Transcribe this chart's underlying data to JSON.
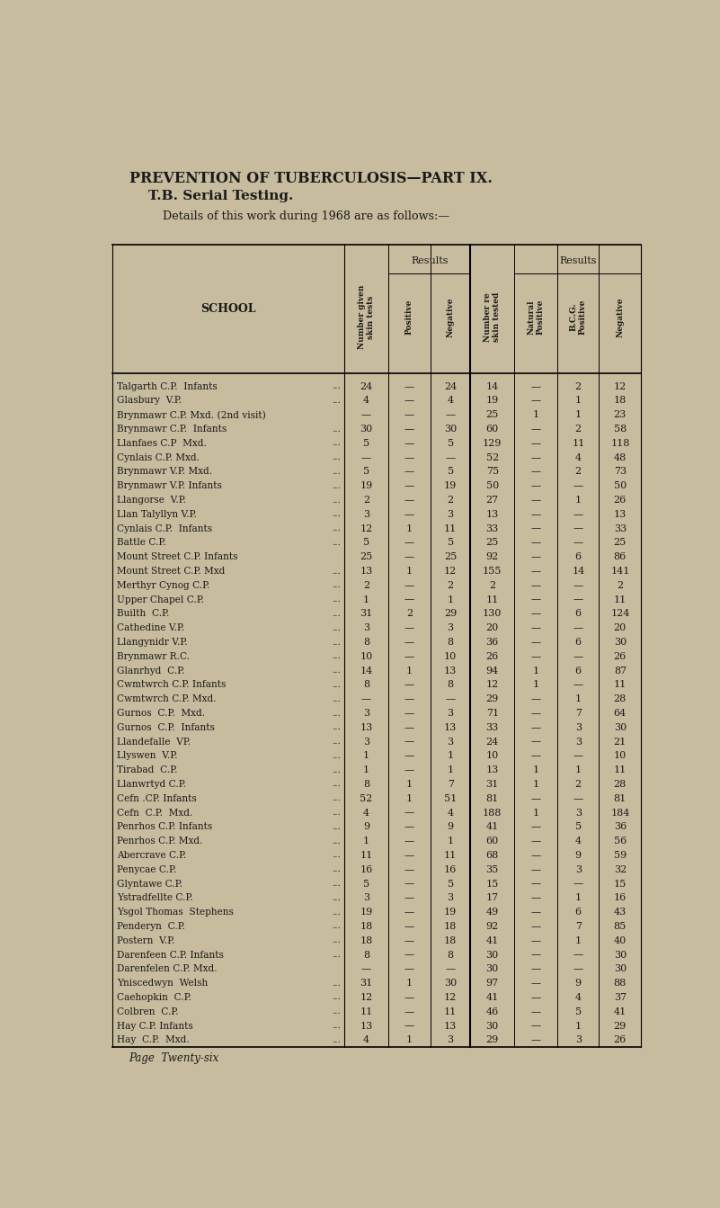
{
  "title1": "PREVENTION OF TUBERCULOSIS—PART IX.",
  "title2": "T.B. Serial Testing.",
  "subtitle": "Details of this work during 1968 are as follows:—",
  "bg_color": "#c8bc9e",
  "text_color": "#1a1a1a",
  "page_footer": "Page  Twenty-six",
  "rows": [
    [
      "Talgarth C.P.  Infants",
      true,
      "24",
      "—",
      "24",
      "14",
      "—",
      "2",
      "12"
    ],
    [
      "Glasbury  V.P.",
      true,
      "4",
      "—",
      "4",
      "19",
      "—",
      "1",
      "18"
    ],
    [
      "Brynmawr C.P. Mxd. (2nd visit)",
      false,
      "—",
      "—",
      "—",
      "25",
      "1",
      "1",
      "23"
    ],
    [
      "Brynmawr C.P.  Infants",
      true,
      "30",
      "—",
      "30",
      "60",
      "—",
      "2",
      "58"
    ],
    [
      "Llanfaes C.P  Mxd.",
      true,
      "5",
      "—",
      "5",
      "129",
      "—",
      "11",
      "118"
    ],
    [
      "Cynlais C.P. Mxd.",
      true,
      "—",
      "—",
      "—",
      "52",
      "—",
      "4",
      "48"
    ],
    [
      "Brynmawr V.P. Mxd.",
      true,
      "5",
      "—",
      "5",
      "75",
      "—",
      "2",
      "73"
    ],
    [
      "Brynmawr V.P. Infants",
      true,
      "19",
      "—",
      "19",
      "50",
      "—",
      "—",
      "50"
    ],
    [
      "Llangorse  V.P.",
      true,
      "2",
      "—",
      "2",
      "27",
      "—",
      "1",
      "26"
    ],
    [
      "Llan Talyllyn V.P.",
      true,
      "3",
      "—",
      "3",
      "13",
      "—",
      "—",
      "13"
    ],
    [
      "Cynlais C.P.  Infants",
      true,
      "12",
      "1",
      "11",
      "33",
      "—",
      "—",
      "33"
    ],
    [
      "Battle C.P.",
      true,
      "5",
      "—",
      "5",
      "25",
      "—",
      "—",
      "25"
    ],
    [
      "Mount Street C.P. Infants",
      false,
      "25",
      "—",
      "25",
      "92",
      "—",
      "6",
      "86"
    ],
    [
      "Mount Street C.P. Mxd",
      true,
      "13",
      "1",
      "12",
      "155",
      "—",
      "14",
      "141"
    ],
    [
      "Merthyr Cynog C.P.",
      true,
      "2",
      "—",
      "2",
      "2",
      "—",
      "—",
      "2"
    ],
    [
      "Upper Chapel C.P.",
      true,
      "1",
      "—",
      "1",
      "11",
      "—",
      "—",
      "11"
    ],
    [
      "Builth  C.P.",
      true,
      "31",
      "2",
      "29",
      "130",
      "—",
      "6",
      "124"
    ],
    [
      "Cathedine V.P.",
      true,
      "3",
      "—",
      "3",
      "20",
      "—",
      "—",
      "20"
    ],
    [
      "Llangynidr V.P.",
      true,
      "8",
      "—",
      "8",
      "36",
      "—",
      "6",
      "30"
    ],
    [
      "Brynmawr R.C.",
      true,
      "10",
      "—",
      "10",
      "26",
      "—",
      "—",
      "26"
    ],
    [
      "Glanrhyd  C.P.",
      true,
      "14",
      "1",
      "13",
      "94",
      "1",
      "6",
      "87"
    ],
    [
      "Cwmtwrch C.P. Infants",
      true,
      "8",
      "—",
      "8",
      "12",
      "1",
      "—",
      "11"
    ],
    [
      "Cwmtwrch C.P. Mxd.",
      true,
      "—",
      "—",
      "—",
      "29",
      "—",
      "1",
      "28"
    ],
    [
      "Gurnos  C.P.  Mxd.",
      true,
      "3",
      "—",
      "3",
      "71",
      "—",
      "7",
      "64"
    ],
    [
      "Gurnos  C.P.  Infants",
      true,
      "13",
      "—",
      "13",
      "33",
      "—",
      "3",
      "30"
    ],
    [
      "Llandefalle  VP.",
      true,
      "3",
      "—",
      "3",
      "24",
      "—",
      "3",
      "21"
    ],
    [
      "Llyswen  V.P.",
      true,
      "1",
      "—",
      "1",
      "10",
      "—",
      "—",
      "10"
    ],
    [
      "Tirabad  C.P.",
      true,
      "1",
      "—",
      "1",
      "13",
      "1",
      "1",
      "11"
    ],
    [
      "Llanwrtyd C.P.",
      true,
      "8",
      "1",
      "7",
      "31",
      "1",
      "2",
      "28"
    ],
    [
      "Cefn .CP. Infants",
      true,
      "52",
      "1",
      "51",
      "81",
      "—",
      "—",
      "81"
    ],
    [
      "Cefn  C.P.  Mxd.",
      true,
      "4",
      "—",
      "4",
      "188",
      "1",
      "3",
      "184"
    ],
    [
      "Penrhos C.P. Infants",
      true,
      "9",
      "—",
      "9",
      "41",
      "—",
      "5",
      "36"
    ],
    [
      "Penrhos C.P. Mxd.",
      true,
      "1",
      "—",
      "1",
      "60",
      "—",
      "4",
      "56"
    ],
    [
      "Abercrave C.P.",
      true,
      "11",
      "—",
      "11",
      "68",
      "—",
      "9",
      "59"
    ],
    [
      "Penycae C.P.",
      true,
      "16",
      "—",
      "16",
      "35",
      "—",
      "3",
      "32"
    ],
    [
      "Glyntawe C.P.",
      true,
      "5",
      "—",
      "5",
      "15",
      "—",
      "—",
      "15"
    ],
    [
      "Ystradfellte C.P.",
      true,
      "3",
      "—",
      "3",
      "17",
      "—",
      "1",
      "16"
    ],
    [
      "Ysgol Thomas  Stephens",
      true,
      "19",
      "—",
      "19",
      "49",
      "—",
      "6",
      "43"
    ],
    [
      "Penderyn  C.P.",
      true,
      "18",
      "—",
      "18",
      "92",
      "—",
      "7",
      "85"
    ],
    [
      "Postern  V.P.",
      true,
      "18",
      "—",
      "18",
      "41",
      "—",
      "1",
      "40"
    ],
    [
      "Darenfeen C.P. Infants",
      true,
      "8",
      "—",
      "8",
      "30",
      "—",
      "—",
      "30"
    ],
    [
      "Darenfelen C.P. Mxd.",
      false,
      "—",
      "—",
      "—",
      "30",
      "—",
      "—",
      "30"
    ],
    [
      "Yniscedwyn  Welsh",
      true,
      "31",
      "1",
      "30",
      "97",
      "—",
      "9",
      "88"
    ],
    [
      "Caehopkin  C.P.",
      true,
      "12",
      "—",
      "12",
      "41",
      "—",
      "4",
      "37"
    ],
    [
      "Colbren  C.P.",
      true,
      "11",
      "—",
      "11",
      "46",
      "—",
      "5",
      "41"
    ],
    [
      "Hay C.P. Infants",
      true,
      "13",
      "—",
      "13",
      "30",
      "—",
      "1",
      "29"
    ],
    [
      "Hay  C.P.  Mxd.",
      true,
      "4",
      "1",
      "3",
      "29",
      "—",
      "3",
      "26"
    ]
  ]
}
